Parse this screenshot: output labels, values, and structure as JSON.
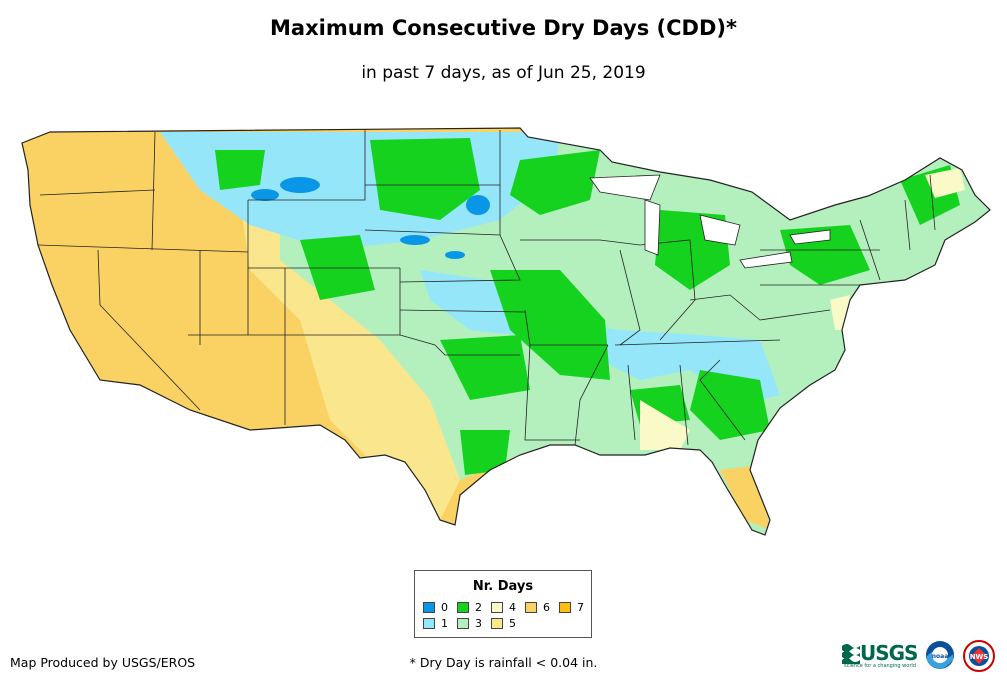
{
  "title": "Maximum Consecutive Dry Days (CDD)*",
  "subtitle": "in past 7 days, as of Jun 25, 2019",
  "legend": {
    "title": "Nr. Days",
    "items": [
      {
        "label": "0",
        "color": "#0a96e6"
      },
      {
        "label": "1",
        "color": "#96e6fa"
      },
      {
        "label": "2",
        "color": "#14d21e"
      },
      {
        "label": "3",
        "color": "#b4f0be"
      },
      {
        "label": "4",
        "color": "#fafac8"
      },
      {
        "label": "5",
        "color": "#fae68c"
      },
      {
        "label": "6",
        "color": "#fad264"
      },
      {
        "label": "7",
        "color": "#fabe14"
      }
    ]
  },
  "credit": "Map Produced by USGS/EROS",
  "footnote": "* Dry Day is rainfall < 0.04 in.",
  "logos": {
    "usgs": "USGS",
    "usgs_tagline": "science for a changing world",
    "noaa": "noaa",
    "nws": "NWS"
  }
}
